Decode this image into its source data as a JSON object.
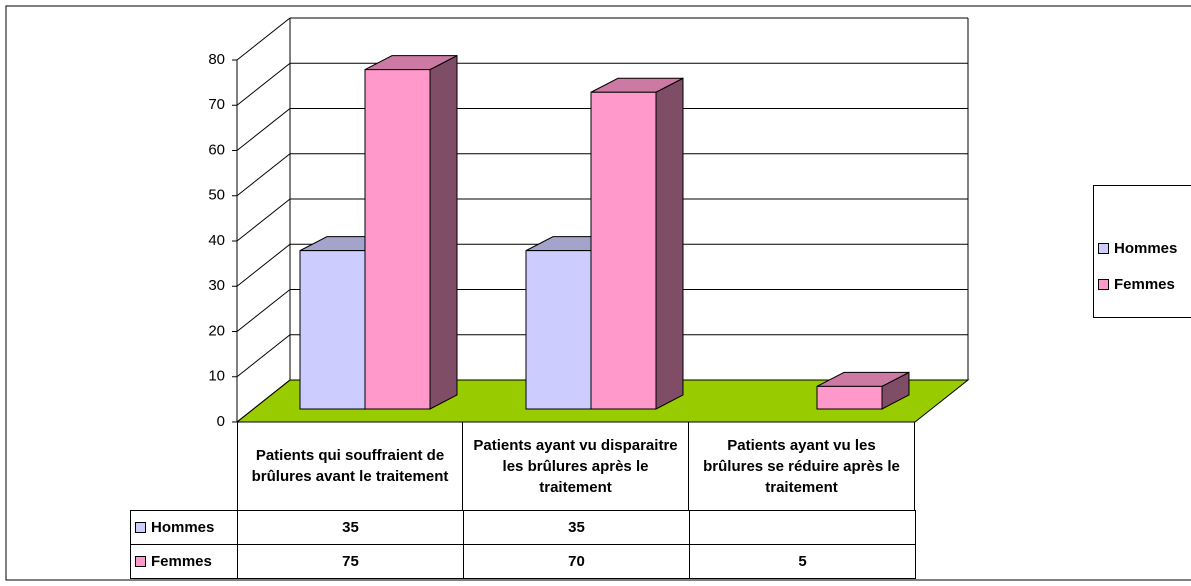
{
  "chart_data": {
    "type": "bar3d",
    "categories": [
      "Patients qui souffraient de brûlures avant le traitement",
      "Patients ayant vu disparaitre les brûlures après le traitement",
      "Patients ayant vu les brûlures se réduire après le traitement"
    ],
    "series": [
      {
        "name": "Hommes",
        "color": "#ccccff",
        "values": [
          35,
          35,
          null
        ]
      },
      {
        "name": "Femmes",
        "color": "#ff99cc",
        "values": [
          75,
          70,
          5
        ]
      }
    ],
    "ylim": [
      0,
      80
    ],
    "yticks": [
      0,
      10,
      20,
      30,
      40,
      50,
      60,
      70,
      80
    ],
    "grid": true,
    "legend": "right",
    "floor_color": "#99cc00"
  }
}
